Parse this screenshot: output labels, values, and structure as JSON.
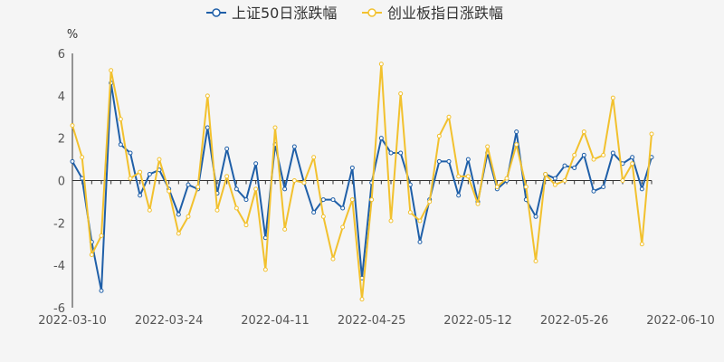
{
  "chart_data": {
    "type": "line",
    "ylabel": "%",
    "ylim": [
      -6,
      6
    ],
    "yticks": [
      -6,
      -4,
      -2,
      0,
      2,
      4,
      6
    ],
    "x_tick_labels": [
      "2022-03-10",
      "2022-03-24",
      "2022-04-11",
      "2022-04-25",
      "2022-05-12",
      "2022-05-26",
      "2022-06-10"
    ],
    "x_tick_indices": [
      0,
      10,
      21,
      31,
      42,
      52,
      63
    ],
    "legend_position": "top-center",
    "series": [
      {
        "name": "上证50日涨跌幅",
        "color": "#1f5fa8",
        "values": [
          0.9,
          0.1,
          -2.9,
          -5.2,
          4.6,
          1.7,
          1.3,
          -0.7,
          0.3,
          0.5,
          -0.4,
          -1.6,
          -0.2,
          -0.4,
          2.5,
          -0.6,
          1.5,
          -0.4,
          -0.9,
          0.8,
          -2.7,
          1.7,
          -0.4,
          1.6,
          -0.1,
          -1.5,
          -0.9,
          -0.9,
          -1.3,
          0.6,
          -4.6,
          -0.1,
          2.0,
          1.3,
          1.3,
          -0.2,
          -2.9,
          -0.9,
          0.9,
          0.9,
          -0.7,
          1.0,
          -1.0,
          1.3,
          -0.4,
          0.0,
          2.3,
          -0.9,
          -1.7,
          0.3,
          0.1,
          0.7,
          0.6,
          1.2,
          -0.5,
          -0.3,
          1.3,
          0.8,
          1.1,
          -0.4,
          1.1
        ]
      },
      {
        "name": "创业板指日涨跌幅",
        "color": "#f2c12e",
        "values": [
          2.6,
          1.1,
          -3.5,
          -2.6,
          5.2,
          2.9,
          0.1,
          0.4,
          -1.4,
          1.0,
          -0.5,
          -2.5,
          -1.7,
          -0.3,
          4.0,
          -1.4,
          0.2,
          -1.3,
          -2.1,
          -0.4,
          -4.2,
          2.5,
          -2.3,
          0.0,
          -0.1,
          1.1,
          -1.7,
          -3.7,
          -2.2,
          -0.9,
          -5.6,
          -0.9,
          5.5,
          -1.9,
          4.1,
          -1.5,
          -1.9,
          -1.0,
          2.1,
          3.0,
          0.2,
          0.2,
          -1.1,
          1.6,
          -0.3,
          0.1,
          1.7,
          -0.3,
          -3.8,
          0.3,
          -0.2,
          0.0,
          1.2,
          2.3,
          1.0,
          1.2,
          3.9,
          0.0,
          0.8,
          -3.0,
          2.2
        ]
      }
    ]
  }
}
